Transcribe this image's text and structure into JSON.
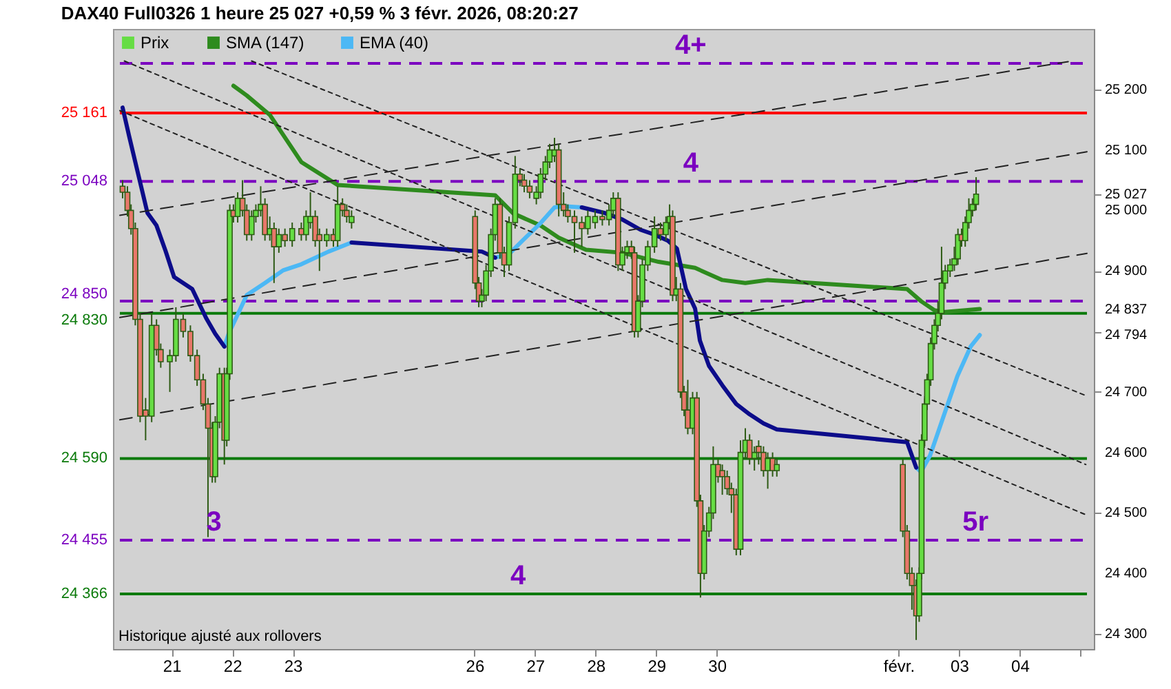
{
  "chart_data": {
    "type": "candlestick",
    "title": "DAX40 Full0326 1 heure 25 027 +0,59 % 3 févr. 2026, 08:20:27",
    "xlim": [
      "2026-01-20T03:29",
      "2026-02-05T02:38"
    ],
    "ylim": [
      24275,
      25300
    ],
    "xticks": [
      {
        "value": "2026-01-21",
        "label": "21"
      },
      {
        "value": "2026-01-22",
        "label": "22"
      },
      {
        "value": "2026-01-23",
        "label": "23"
      },
      {
        "value": "2026-01-26",
        "label": "26"
      },
      {
        "value": "2026-01-27",
        "label": "27"
      },
      {
        "value": "2026-01-28",
        "label": "28"
      },
      {
        "value": "2026-01-29",
        "label": "29"
      },
      {
        "value": "2026-01-30",
        "label": "30"
      },
      {
        "value": "2026-02-02",
        "label": "févr."
      },
      {
        "value": "2026-02-03",
        "label": "03"
      },
      {
        "value": "2026-02-04",
        "label": "04"
      },
      {
        "value": "2026-02-05",
        "label": null
      }
    ],
    "yticks": [
      {
        "value": 24300,
        "label": "24 300"
      },
      {
        "value": 24400,
        "label": "24 400"
      },
      {
        "value": 24500,
        "label": "24 500"
      },
      {
        "value": 24600,
        "label": "24 600"
      },
      {
        "value": 24700,
        "label": "24 700"
      },
      {
        "value": 24794,
        "label": "24 794"
      },
      {
        "value": 24800,
        "label": null
      },
      {
        "value": 24837,
        "label": "24 837"
      },
      {
        "value": 24900,
        "label": "24 900"
      },
      {
        "value": 25000,
        "label": "25 000"
      },
      {
        "value": 25027,
        "label": "25 027"
      },
      {
        "value": 25100,
        "label": "25 100"
      },
      {
        "value": 25200,
        "label": "25 200"
      }
    ],
    "legend": "top left",
    "series": [
      {
        "name": "Prix",
        "type": "candlestick",
        "color": "#2d5a14",
        "colors": [
          "#e8776a",
          "#e8776a",
          "#e8776a",
          "#e8776a",
          "#e8776a",
          "#e8776a",
          "#66dd44",
          "#e8776a",
          "#e8776a",
          "#66dd44",
          "#66dd44",
          "#e8776a",
          "#e8776a",
          "#e8776a",
          "#e8776a",
          "#e8776a",
          "#e8776a",
          "#66dd44",
          "#66dd44",
          "#e8776a",
          "#66dd44",
          "#66dd44",
          "#e8776a",
          "#66dd44",
          "#e8776a",
          "#e8776a",
          "#66dd44",
          "#66dd44",
          "#66dd44",
          "#e8776a",
          "#66dd44",
          "#e8776a",
          "#66dd44",
          "#e8776a",
          "#66dd44",
          "#e8776a",
          "#66dd44",
          "#66dd44",
          "#e8776a",
          "#e8776a",
          "#66dd44",
          "#e8776a",
          "#66dd44",
          "#e8776a",
          "#e8776a",
          "#66dd44",
          "#e8776a",
          "#e8776a",
          "#66dd44",
          "#66dd44",
          "#66dd44",
          "#66dd44",
          "#e8776a",
          "#e8776a",
          "#66dd44",
          "#66dd44",
          "#e8776a",
          "#e8776a",
          "#e8776a",
          "#66dd44",
          "#66dd44",
          "#66dd44",
          "#66dd44",
          "#66dd44",
          "#e8776a",
          "#e8776a",
          "#e8776a",
          "#e8776a",
          "#e8776a",
          "#66dd44",
          "#66dd44",
          "#e8776a",
          "#66dd44",
          "#66dd44",
          "#e8776a",
          "#66dd44",
          "#66dd44",
          "#e8776a",
          "#e8776a",
          "#66dd44",
          "#66dd44",
          "#66dd44",
          "#66dd44",
          "#e8776a",
          "#66dd44",
          "#66dd44",
          "#e8776a",
          "#66dd44",
          "#e8776a",
          "#e8776a",
          "#e8776a",
          "#66dd44",
          "#e8776a",
          "#e8776a",
          "#66dd44",
          "#66dd44",
          "#66dd44",
          "#e8776a",
          "#e8776a",
          "#e8776a",
          "#e8776a",
          "#e8776a",
          "#66dd44",
          "#66dd44",
          "#e8776a",
          "#66dd44",
          "#e8776a",
          "#e8776a",
          "#66dd44",
          "#e8776a",
          "#66dd44",
          "#e8776a",
          "#e8776a",
          "#e8776a",
          "#e8776a",
          "#66dd44",
          "#66dd44",
          "#66dd44",
          "#66dd44",
          "#66dd44",
          "#66dd44",
          "#66dd44",
          "#66dd44",
          "#66dd44",
          "#66dd44",
          "#66dd44",
          "#66dd44",
          "#e8776a",
          "#66dd44",
          "#66dd44",
          "#66dd44",
          "#66dd44"
        ],
        "x": [
          "2026-01-20T04:34",
          "2026-01-20T06:29",
          "2026-01-20T07:55",
          "2026-01-20T09:36",
          "2026-01-20T11:31",
          "2026-01-20T13:41",
          "2026-01-20T16:05",
          "2026-01-20T18:00",
          "2026-01-20T19:41",
          "2026-01-20T23:17",
          "2026-01-21T01:41",
          "2026-01-21T04:34",
          "2026-01-21T07:26",
          "2026-01-21T10:05",
          "2026-01-21T12:29",
          "2026-01-21T14:24",
          "2026-01-21T16:05",
          "2026-01-21T17:17",
          "2026-01-21T18:58",
          "2026-01-21T20:53",
          "2026-01-21T21:50",
          "2026-01-21T23:02",
          "2026-01-22T00:29",
          "2026-01-22T02:10",
          "2026-01-22T04:05",
          "2026-01-22T05:46",
          "2026-01-22T07:41",
          "2026-01-22T09:22",
          "2026-01-22T11:17",
          "2026-01-22T12:58",
          "2026-01-22T14:53",
          "2026-01-22T16:34",
          "2026-01-22T18:29",
          "2026-01-22T20:53",
          "2026-01-22T23:46",
          "2026-01-23T03:22",
          "2026-01-23T05:17",
          "2026-01-23T06:58",
          "2026-01-23T08:53",
          "2026-01-23T10:34",
          "2026-01-23T13:26",
          "2026-01-23T16:05",
          "2026-01-23T17:46",
          "2026-01-23T19:41",
          "2026-01-23T21:22",
          "2026-01-23T23:17",
          "2026-01-26T00:14",
          "2026-01-26T01:41",
          "2026-01-26T02:53",
          "2026-01-26T04:34",
          "2026-01-26T06:29",
          "2026-01-26T08:10",
          "2026-01-26T10:05",
          "2026-01-26T11:46",
          "2026-01-26T13:41",
          "2026-01-26T16:05",
          "2026-01-26T18:00",
          "2026-01-26T19:41",
          "2026-01-26T21:50",
          "2026-01-27T00:29",
          "2026-01-27T02:10",
          "2026-01-27T04:05",
          "2026-01-27T05:46",
          "2026-01-27T07:41",
          "2026-01-27T09:22",
          "2026-01-27T11:17",
          "2026-01-27T12:58",
          "2026-01-27T15:36",
          "2026-01-27T18:29",
          "2026-01-27T20:53",
          "2026-01-27T23:46",
          "2026-01-28T02:38",
          "2026-01-28T05:17",
          "2026-01-28T06:58",
          "2026-01-28T08:53",
          "2026-01-28T10:34",
          "2026-01-28T12:29",
          "2026-01-28T14:10",
          "2026-01-28T15:22",
          "2026-01-28T16:48",
          "2026-01-28T18:29",
          "2026-01-28T20:38",
          "2026-01-28T23:17",
          "2026-01-29T01:41",
          "2026-01-29T03:50",
          "2026-01-29T05:17",
          "2026-01-29T06:29",
          "2026-01-29T07:55",
          "2026-01-29T09:36",
          "2026-01-29T11:02",
          "2026-01-29T12:29",
          "2026-01-29T14:24",
          "2026-01-29T16:05",
          "2026-01-29T17:31",
          "2026-01-29T18:58",
          "2026-01-29T20:53",
          "2026-01-29T22:34",
          "2026-01-30T00:29",
          "2026-01-30T02:10",
          "2026-01-30T04:05",
          "2026-01-30T05:46",
          "2026-01-30T07:41",
          "2026-01-30T09:22",
          "2026-01-30T11:17",
          "2026-01-30T12:58",
          "2026-01-30T14:53",
          "2026-01-30T16:34",
          "2026-01-30T18:29",
          "2026-01-30T20:10",
          "2026-01-30T22:05",
          "2026-01-30T23:46",
          "2026-02-02T01:41",
          "2026-02-02T03:22",
          "2026-02-02T05:17",
          "2026-02-02T06:58",
          "2026-02-02T08:10",
          "2026-02-02T09:07",
          "2026-02-02T10:19",
          "2026-02-02T11:17",
          "2026-02-02T12:43",
          "2026-02-02T14:10",
          "2026-02-02T15:36",
          "2026-02-02T17:02",
          "2026-02-02T18:29",
          "2026-02-02T20:24",
          "2026-02-02T22:05",
          "2026-02-02T23:31",
          "2026-02-03T00:58",
          "2026-02-03T02:24",
          "2026-02-03T03:50",
          "2026-02-03T05:17",
          "2026-02-03T06:43"
        ],
        "ohlc": [
          [
            25040,
            25050,
            25020,
            25030
          ],
          [
            25030,
            25040,
            24990,
            25000
          ],
          [
            25000,
            25010,
            24960,
            24970
          ],
          [
            24970,
            24980,
            24810,
            24820
          ],
          [
            24820,
            24830,
            24650,
            24660
          ],
          [
            24670,
            24690,
            24620,
            24660
          ],
          [
            24660,
            24830,
            24650,
            24810
          ],
          [
            24810,
            24820,
            24760,
            24770
          ],
          [
            24770,
            24780,
            24740,
            24750
          ],
          [
            24750,
            24770,
            24700,
            24760
          ],
          [
            24760,
            24840,
            24750,
            24820
          ],
          [
            24820,
            24830,
            24790,
            24800
          ],
          [
            24800,
            24810,
            24750,
            24760
          ],
          [
            24760,
            24770,
            24710,
            24720
          ],
          [
            24720,
            24730,
            24670,
            24680
          ],
          [
            24680,
            24690,
            24460,
            24640
          ],
          [
            24640,
            24650,
            24550,
            24560
          ],
          [
            24560,
            24660,
            24550,
            24650
          ],
          [
            24650,
            24740,
            24640,
            24730
          ],
          [
            24730,
            24740,
            24580,
            24620
          ],
          [
            24620,
            24740,
            24610,
            24730
          ],
          [
            24730,
            25010,
            24720,
            25000
          ],
          [
            25000,
            25010,
            24980,
            24990
          ],
          [
            24990,
            25030,
            24980,
            25020
          ],
          [
            25020,
            25050,
            24990,
            25000
          ],
          [
            25000,
            25010,
            24950,
            24960
          ],
          [
            24960,
            25000,
            24950,
            24990
          ],
          [
            24990,
            25010,
            24980,
            25000
          ],
          [
            25000,
            25040,
            24990,
            25010
          ],
          [
            25010,
            25020,
            24950,
            24960
          ],
          [
            24960,
            24990,
            24950,
            24970
          ],
          [
            24970,
            24980,
            24880,
            24940
          ],
          [
            24940,
            24970,
            24930,
            24960
          ],
          [
            24960,
            24970,
            24940,
            24950
          ],
          [
            24950,
            24980,
            24940,
            24970
          ],
          [
            24970,
            24980,
            24950,
            24960
          ],
          [
            24960,
            25000,
            24950,
            24990
          ],
          [
            24980,
            25030,
            24970,
            24990
          ],
          [
            24990,
            25000,
            24940,
            24950
          ],
          [
            24960,
            24970,
            24900,
            24950
          ],
          [
            24950,
            24970,
            24940,
            24960
          ],
          [
            24960,
            24970,
            24940,
            24950
          ],
          [
            24950,
            25040,
            24940,
            25010
          ],
          [
            25010,
            25020,
            24990,
            25000
          ],
          [
            25000,
            25010,
            24980,
            24990
          ],
          [
            24980,
            25000,
            24970,
            24990
          ],
          [
            24990,
            25000,
            24870,
            24880
          ],
          [
            24880,
            24890,
            24840,
            24850
          ],
          [
            24850,
            24870,
            24840,
            24860
          ],
          [
            24860,
            24910,
            24850,
            24900
          ],
          [
            24900,
            24970,
            24890,
            24960
          ],
          [
            24960,
            25020,
            24950,
            25010
          ],
          [
            25010,
            25020,
            24920,
            24930
          ],
          [
            24930,
            24940,
            24890,
            24910
          ],
          [
            24910,
            24990,
            24900,
            24980
          ],
          [
            24980,
            25090,
            24970,
            25060
          ],
          [
            25060,
            25070,
            25040,
            25050
          ],
          [
            25050,
            25060,
            25030,
            25040
          ],
          [
            25040,
            25050,
            25020,
            25030
          ],
          [
            25020,
            25040,
            25010,
            25030
          ],
          [
            25030,
            25070,
            25020,
            25060
          ],
          [
            25060,
            25090,
            25050,
            25080
          ],
          [
            25080,
            25110,
            25070,
            25100
          ],
          [
            25090,
            25120,
            25080,
            25100
          ],
          [
            25100,
            25110,
            24990,
            25010
          ],
          [
            25010,
            25030,
            24990,
            25000
          ],
          [
            25000,
            25010,
            24980,
            24990
          ],
          [
            24990,
            25000,
            24930,
            24980
          ],
          [
            24980,
            24990,
            24940,
            24970
          ],
          [
            24970,
            25000,
            24960,
            24990
          ],
          [
            24980,
            25000,
            24970,
            24990
          ],
          [
            24990,
            25000,
            24975,
            24985
          ],
          [
            24985,
            25010,
            24975,
            25000
          ],
          [
            25000,
            25030,
            24990,
            25020
          ],
          [
            25020,
            25030,
            24900,
            24910
          ],
          [
            24910,
            24940,
            24900,
            24930
          ],
          [
            24930,
            24950,
            24920,
            24940
          ],
          [
            24940,
            24950,
            24920,
            24930
          ],
          [
            24930,
            24940,
            24790,
            24800
          ],
          [
            24800,
            24860,
            24790,
            24850
          ],
          [
            24850,
            24920,
            24840,
            24910
          ],
          [
            24910,
            24950,
            24900,
            24940
          ],
          [
            24940,
            24990,
            24930,
            24970
          ],
          [
            24970,
            24980,
            24950,
            24960
          ],
          [
            24960,
            24990,
            24950,
            24980
          ],
          [
            24980,
            25010,
            24970,
            24990
          ],
          [
            24990,
            25000,
            24850,
            24860
          ],
          [
            24860,
            24890,
            24850,
            24870
          ],
          [
            24870,
            24880,
            24690,
            24700
          ],
          [
            24700,
            24710,
            24660,
            24670
          ],
          [
            24670,
            24720,
            24630,
            24640
          ],
          [
            24640,
            24700,
            24630,
            24690
          ],
          [
            24690,
            24700,
            24510,
            24520
          ],
          [
            24520,
            24530,
            24360,
            24400
          ],
          [
            24400,
            24480,
            24390,
            24470
          ],
          [
            24470,
            24510,
            24460,
            24500
          ],
          [
            24500,
            24610,
            24490,
            24580
          ],
          [
            24580,
            24590,
            24550,
            24560
          ],
          [
            24570,
            24580,
            24530,
            24560
          ],
          [
            24560,
            24570,
            24530,
            24540
          ],
          [
            24540,
            24550,
            24500,
            24530
          ],
          [
            24530,
            24540,
            24430,
            24440
          ],
          [
            24440,
            24620,
            24430,
            24600
          ],
          [
            24600,
            24640,
            24590,
            24620
          ],
          [
            24620,
            24630,
            24580,
            24590
          ],
          [
            24590,
            24610,
            24570,
            24600
          ],
          [
            24610,
            24620,
            24580,
            24600
          ],
          [
            24600,
            24610,
            24560,
            24570
          ],
          [
            24570,
            24600,
            24540,
            24590
          ],
          [
            24590,
            24600,
            24560,
            24570
          ],
          [
            24570,
            24590,
            24560,
            24580
          ],
          [
            24580,
            24590,
            24460,
            24470
          ],
          [
            24470,
            24480,
            24390,
            24400
          ],
          [
            24400,
            24410,
            24340,
            24380
          ],
          [
            24380,
            24390,
            24290,
            24330
          ],
          [
            24330,
            24410,
            24320,
            24400
          ],
          [
            24400,
            24630,
            24390,
            24620
          ],
          [
            24620,
            24690,
            24610,
            24680
          ],
          [
            24680,
            24730,
            24670,
            24720
          ],
          [
            24720,
            24790,
            24710,
            24780
          ],
          [
            24780,
            24820,
            24770,
            24810
          ],
          [
            24810,
            24850,
            24800,
            24830
          ],
          [
            24830,
            24940,
            24820,
            24880
          ],
          [
            24880,
            24910,
            24870,
            24900
          ],
          [
            24900,
            24920,
            24890,
            24910
          ],
          [
            24910,
            24940,
            24900,
            24920
          ],
          [
            24920,
            24970,
            24910,
            24960
          ],
          [
            24960,
            24970,
            24940,
            24950
          ],
          [
            24950,
            24990,
            24940,
            24980
          ],
          [
            24980,
            25020,
            24970,
            25000
          ],
          [
            25000,
            25020,
            24990,
            25010
          ],
          [
            25010,
            25055,
            25000,
            25027
          ]
        ]
      },
      {
        "name": "SMA (147)",
        "type": "line",
        "color": "#2e8b1e",
        "x": [
          "2026-01-22T00:29",
          "2026-01-22T05:46",
          "2026-01-22T14:53",
          "2026-01-23T03:22",
          "2026-01-23T17:46",
          "2026-01-26T08:10",
          "2026-01-26T15:22",
          "2026-01-27T02:10",
          "2026-01-27T09:22",
          "2026-01-27T20:10",
          "2026-01-28T10:34",
          "2026-01-29T00:58",
          "2026-01-29T15:22",
          "2026-01-30T02:10",
          "2026-01-30T11:17",
          "2026-01-30T20:10",
          "2026-02-02T03:22",
          "2026-02-02T08:53",
          "2026-02-02T14:10",
          "2026-02-02T17:46",
          "2026-02-03T08:10"
        ],
        "values": [
          25206,
          25190,
          25158,
          25080,
          25042,
          25025,
          24995,
          24975,
          24955,
          24935,
          24930,
          24915,
          24905,
          24885,
          24880,
          24885,
          24870,
          24850,
          24835,
          24832,
          24837
        ]
      },
      {
        "name": "EMA (40)",
        "type": "line",
        "color": "#4cb8f5",
        "x": [
          "2026-01-21T20:53",
          "2026-01-21T22:34",
          "2026-01-22T02:10",
          "2026-01-22T05:46",
          "2026-01-22T12:58",
          "2026-01-22T20:10",
          "2026-01-23T03:22",
          "2026-01-23T14:10",
          "2026-01-23T23:17",
          "2026-01-26T02:24",
          "2026-01-26T08:10",
          "2026-01-26T13:41",
          "2026-01-26T18:58",
          "2026-01-27T02:10",
          "2026-01-27T07:41",
          "2026-01-27T11:17",
          "2026-01-27T18:29",
          "2026-01-29T00:00",
          "2026-02-02T06:58",
          "2026-02-02T08:53",
          "2026-02-02T12:29",
          "2026-02-02T17:46",
          "2026-02-02T23:17",
          "2026-02-03T04:34",
          "2026-02-03T08:10"
        ],
        "values": [
          24775,
          24796,
          24828,
          24860,
          24880,
          24901,
          24911,
          24932,
          24947,
          null,
          24922,
          24928,
          24950,
          24979,
          25005,
          25007,
          25005,
          null,
          24575,
          24568,
          24595,
          24659,
          24726,
          24775,
          24794
        ]
      },
      {
        "type": "line",
        "color": "#0c0c8a",
        "x": [
          "2026-01-20T04:34",
          "2026-01-20T07:12",
          "2026-01-20T10:48",
          "2026-01-20T14:24",
          "2026-01-20T18:00",
          "2026-01-20T21:36",
          "2026-01-21T00:58",
          "2026-01-21T08:10",
          "2026-01-21T13:41",
          "2026-01-21T17:17",
          "2026-01-21T20:53",
          "2026-01-22T12:00",
          "2026-01-23T23:17",
          "2026-01-26T02:53",
          "2026-01-26T08:10",
          "2026-01-27T00:00",
          "2026-01-27T18:29",
          "2026-01-28T03:22",
          "2026-01-28T10:34",
          "2026-01-28T17:46",
          "2026-01-28T23:17",
          "2026-01-29T04:34",
          "2026-01-29T08:10",
          "2026-01-29T11:46",
          "2026-01-29T15:22",
          "2026-01-29T17:17",
          "2026-01-29T20:53",
          "2026-01-30T02:10",
          "2026-01-30T07:41",
          "2026-01-30T12:58",
          "2026-01-30T18:29",
          "2026-01-30T23:46",
          "2026-02-02T03:22",
          "2026-02-02T06:58"
        ],
        "values": [
          25170,
          25122,
          25059,
          24996,
          24975,
          24933,
          24890,
          24870,
          24822,
          24796,
          24775,
          null,
          24947,
          24932,
          24922,
          null,
          25005,
          24996,
          24985,
          24968,
          24960,
          24950,
          24937,
          24870,
          24838,
          24785,
          24743,
          24711,
          24680,
          24663,
          24648,
          24638,
          24617,
          24575
        ]
      },
      {
        "type": "line",
        "color": "#222222",
        "line_style": "dashed",
        "x": [
          "2026-01-20T03:29",
          "2026-02-04T19:12"
        ],
        "values": [
          24992,
          25246
        ]
      },
      {
        "type": "line",
        "color": "#222222",
        "line_style": "dashed",
        "x": [
          "2026-01-20T03:29",
          "2026-02-05T02:38"
        ],
        "values": [
          24823,
          25097
        ]
      },
      {
        "type": "line",
        "color": "#222222",
        "line_style": "dashed",
        "x": [
          "2026-01-20T03:29",
          "2026-02-05T02:38"
        ],
        "values": [
          24654,
          24929
        ]
      },
      {
        "type": "line",
        "color": "#222222",
        "line_style": "dotted",
        "x": [
          "2026-01-22T07:41",
          "2026-02-05T02:10"
        ],
        "values": [
          25247,
          24694
        ]
      },
      {
        "type": "line",
        "color": "#222222",
        "line_style": "dotted",
        "x": [
          "2026-01-20T03:29",
          "2026-02-05T02:10"
        ],
        "values": [
          25165,
          24497
        ]
      },
      {
        "type": "line",
        "color": "#222222",
        "line_style": "dotted",
        "x": [
          "2026-01-20T05:17",
          "2026-02-05T02:10"
        ],
        "values": [
          25247,
          24580
        ]
      }
    ],
    "ref_lines": [
      {
        "axis": "y",
        "value": 25243,
        "color": "#7b00c0",
        "line_style": "dashed"
      },
      {
        "axis": "y",
        "value": 25161,
        "label": "25 161",
        "color": "#ff0000",
        "line_style": "solid"
      },
      {
        "axis": "y",
        "value": 25048,
        "label": "25 048",
        "color": "#7b00c0",
        "line_style": "dashed"
      },
      {
        "axis": "y",
        "value": 24850,
        "label": "24 850",
        "color": "#7b00c0",
        "line_style": "dashed"
      },
      {
        "axis": "y",
        "value": 24830,
        "label": "24 830",
        "color": "#0a7a0a",
        "line_style": "solid"
      },
      {
        "axis": "y",
        "value": 24590,
        "label": "24 590",
        "color": "#0a7a0a",
        "line_style": "solid"
      },
      {
        "axis": "y",
        "value": 24455,
        "label": "24 455",
        "color": "#7b00c0",
        "line_style": "dashed"
      },
      {
        "axis": "y",
        "value": 24366,
        "label": "24 366",
        "color": "#0a7a0a",
        "line_style": "solid"
      }
    ],
    "annotations": [
      {
        "text": "4+",
        "x": "2026-01-29T13:41",
        "y": 25243
      },
      {
        "text": "4",
        "x": "2026-01-29T13:41",
        "y": 25048
      },
      {
        "text": "3",
        "x": "2026-01-21T16:48",
        "y": 24455
      },
      {
        "text": "5r",
        "x": "2026-02-03T06:29",
        "y": 24455
      },
      {
        "text": "4",
        "x": "2026-01-26T17:17",
        "y": 24366
      },
      "Historique ajusté aux rollovers"
    ]
  }
}
